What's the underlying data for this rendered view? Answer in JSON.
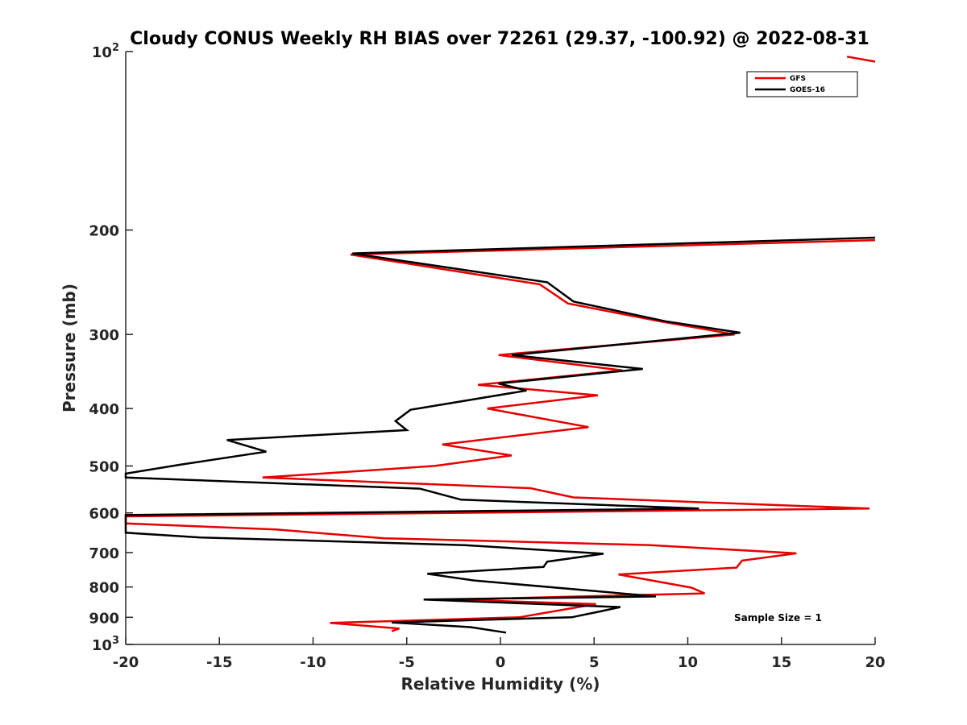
{
  "chart_data": {
    "type": "line",
    "title": "Cloudy CONUS Weekly RH BIAS over 72261 (29.37, -100.92) @ 2022-08-31",
    "xlabel": "Relative Humidity (%)",
    "ylabel": "Pressure (mb)",
    "xlim": [
      -20,
      20
    ],
    "ylim": [
      100,
      1000
    ],
    "yscale": "log",
    "y_reversed": true,
    "grid": false,
    "legend_position": "top-right",
    "x_ticks": [
      "-20",
      "-15",
      "-10",
      "-5",
      "0",
      "5",
      "10",
      "15",
      "20"
    ],
    "y_ticks": [
      {
        "value": 100,
        "base": "10",
        "exp": "2"
      },
      {
        "value": 200,
        "label": "200"
      },
      {
        "value": 300,
        "label": "300"
      },
      {
        "value": 400,
        "label": "400"
      },
      {
        "value": 500,
        "label": "500"
      },
      {
        "value": 600,
        "label": "600"
      },
      {
        "value": 700,
        "label": "700"
      },
      {
        "value": 800,
        "label": "800"
      },
      {
        "value": 900,
        "label": "900"
      },
      {
        "value": 1000,
        "base": "10",
        "exp": "3"
      }
    ],
    "annotation": "Sample Size = 1",
    "series": [
      {
        "name": "GFS",
        "color": "#e60000",
        "segments": [
          [
            {
              "x": 18.5,
              "y": 102
            },
            {
              "x": 20,
              "y": 104
            }
          ],
          [
            {
              "x": 20,
              "y": 208
            },
            {
              "x": -8.0,
              "y": 220
            },
            {
              "x": 2.1,
              "y": 247
            },
            {
              "x": 3.6,
              "y": 266
            },
            {
              "x": 8.5,
              "y": 285
            },
            {
              "x": 12.5,
              "y": 300
            },
            {
              "x": -0.1,
              "y": 325
            },
            {
              "x": 6.5,
              "y": 345
            },
            {
              "x": -1.2,
              "y": 365
            },
            {
              "x": 5.2,
              "y": 380
            },
            {
              "x": -0.7,
              "y": 400
            },
            {
              "x": 4.7,
              "y": 430
            },
            {
              "x": -3.1,
              "y": 460
            },
            {
              "x": 0.6,
              "y": 480
            },
            {
              "x": -3.5,
              "y": 500
            },
            {
              "x": -12.7,
              "y": 523
            },
            {
              "x": 1.6,
              "y": 545
            },
            {
              "x": 3.9,
              "y": 565
            },
            {
              "x": 19.7,
              "y": 590
            },
            {
              "x": -20,
              "y": 608
            },
            {
              "x": -20,
              "y": 625
            },
            {
              "x": -12.0,
              "y": 640
            },
            {
              "x": -6.2,
              "y": 662
            },
            {
              "x": 8.0,
              "y": 680
            },
            {
              "x": 15.8,
              "y": 702
            },
            {
              "x": 12.9,
              "y": 722
            },
            {
              "x": 12.6,
              "y": 742
            },
            {
              "x": 6.3,
              "y": 762
            },
            {
              "x": 10.2,
              "y": 802
            },
            {
              "x": 10.9,
              "y": 820
            },
            {
              "x": -2.5,
              "y": 840
            },
            {
              "x": 5.1,
              "y": 855
            },
            {
              "x": 1.0,
              "y": 900
            },
            {
              "x": -9.1,
              "y": 920
            },
            {
              "x": -5.4,
              "y": 940
            },
            {
              "x": -5.8,
              "y": 950
            }
          ]
        ]
      },
      {
        "name": "GOES-16",
        "color": "#000000",
        "segments": [
          [
            {
              "x": 20,
              "y": 206
            },
            {
              "x": -7.9,
              "y": 219
            },
            {
              "x": 2.5,
              "y": 245
            },
            {
              "x": 3.9,
              "y": 264
            },
            {
              "x": 8.8,
              "y": 285
            },
            {
              "x": 12.8,
              "y": 298
            },
            {
              "x": 0.6,
              "y": 325
            },
            {
              "x": 7.6,
              "y": 343
            },
            {
              "x": -0.1,
              "y": 363
            },
            {
              "x": 1.4,
              "y": 373
            },
            {
              "x": -4.8,
              "y": 402
            },
            {
              "x": -5.6,
              "y": 420
            },
            {
              "x": -5.0,
              "y": 435
            },
            {
              "x": -14.6,
              "y": 452
            },
            {
              "x": -12.5,
              "y": 473
            },
            {
              "x": -17.0,
              "y": 497
            },
            {
              "x": -20,
              "y": 515
            },
            {
              "x": -20,
              "y": 523
            },
            {
              "x": -4.3,
              "y": 546
            },
            {
              "x": -2.1,
              "y": 570
            },
            {
              "x": 10.6,
              "y": 590
            },
            {
              "x": -20,
              "y": 605
            },
            {
              "x": -20,
              "y": 648
            },
            {
              "x": -16,
              "y": 660
            },
            {
              "x": -1.9,
              "y": 680
            },
            {
              "x": 5.5,
              "y": 703
            },
            {
              "x": 2.5,
              "y": 725
            },
            {
              "x": 2.3,
              "y": 740
            },
            {
              "x": -3.9,
              "y": 760
            },
            {
              "x": -1.4,
              "y": 780
            },
            {
              "x": 8.3,
              "y": 830
            },
            {
              "x": -4.1,
              "y": 840
            },
            {
              "x": 6.4,
              "y": 865
            },
            {
              "x": 5.3,
              "y": 880
            },
            {
              "x": 3.8,
              "y": 900
            },
            {
              "x": -5.8,
              "y": 918
            },
            {
              "x": -1.6,
              "y": 935
            },
            {
              "x": 0.3,
              "y": 955
            }
          ]
        ]
      }
    ]
  }
}
